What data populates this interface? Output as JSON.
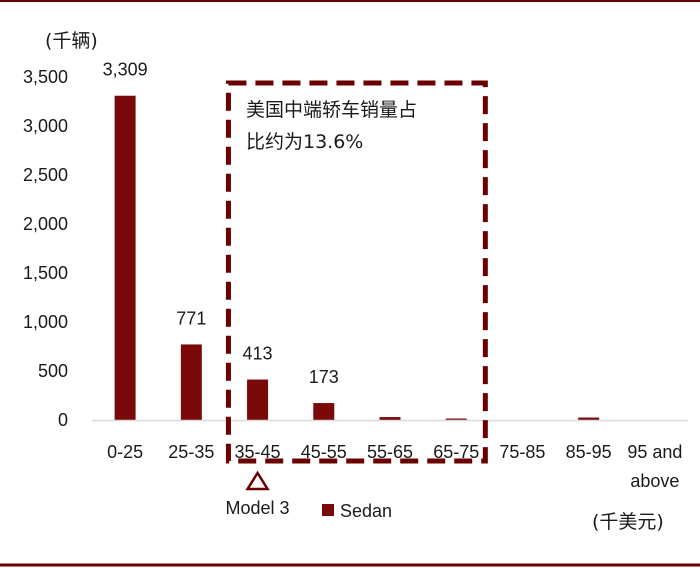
{
  "colors": {
    "bar": "#7a0a0a",
    "frame": "#6b0000",
    "axis": "#d9d9d9"
  },
  "chart_data": {
    "type": "bar",
    "y_unit": "(千辆)",
    "x_unit": "(千美元)",
    "categories": [
      "0-25",
      "25-35",
      "35-45",
      "45-55",
      "55-65",
      "65-75",
      "75-85",
      "85-95",
      "95 and above"
    ],
    "category_lines": [
      [
        "0-25"
      ],
      [
        "25-35"
      ],
      [
        "35-45"
      ],
      [
        "45-55"
      ],
      [
        "55-65"
      ],
      [
        "65-75"
      ],
      [
        "75-85"
      ],
      [
        "85-95"
      ],
      [
        "95 and",
        "above"
      ]
    ],
    "series": [
      {
        "name": "Sedan",
        "values": [
          3309,
          771,
          413,
          173,
          30,
          15,
          0,
          25,
          0
        ]
      }
    ],
    "data_labels": [
      "3,309",
      "771",
      "413",
      "173",
      null,
      null,
      null,
      null,
      null
    ],
    "ylim": [
      0,
      3500
    ],
    "y_ticks": [
      0,
      500,
      1000,
      1500,
      2000,
      2500,
      3000,
      3500
    ],
    "y_tick_labels": [
      "0",
      "500",
      "1,000",
      "1,500",
      "2,000",
      "2,500",
      "3,000",
      "3,500"
    ],
    "grid": false,
    "legend": "bottom",
    "annotations": {
      "box_text_line1": "美国中端轿车销量占",
      "box_text_line2": "比约为13.6%",
      "box_range": [
        "35-45",
        "65-75"
      ],
      "marker_label": "Model 3",
      "marker_category": "35-45"
    }
  }
}
